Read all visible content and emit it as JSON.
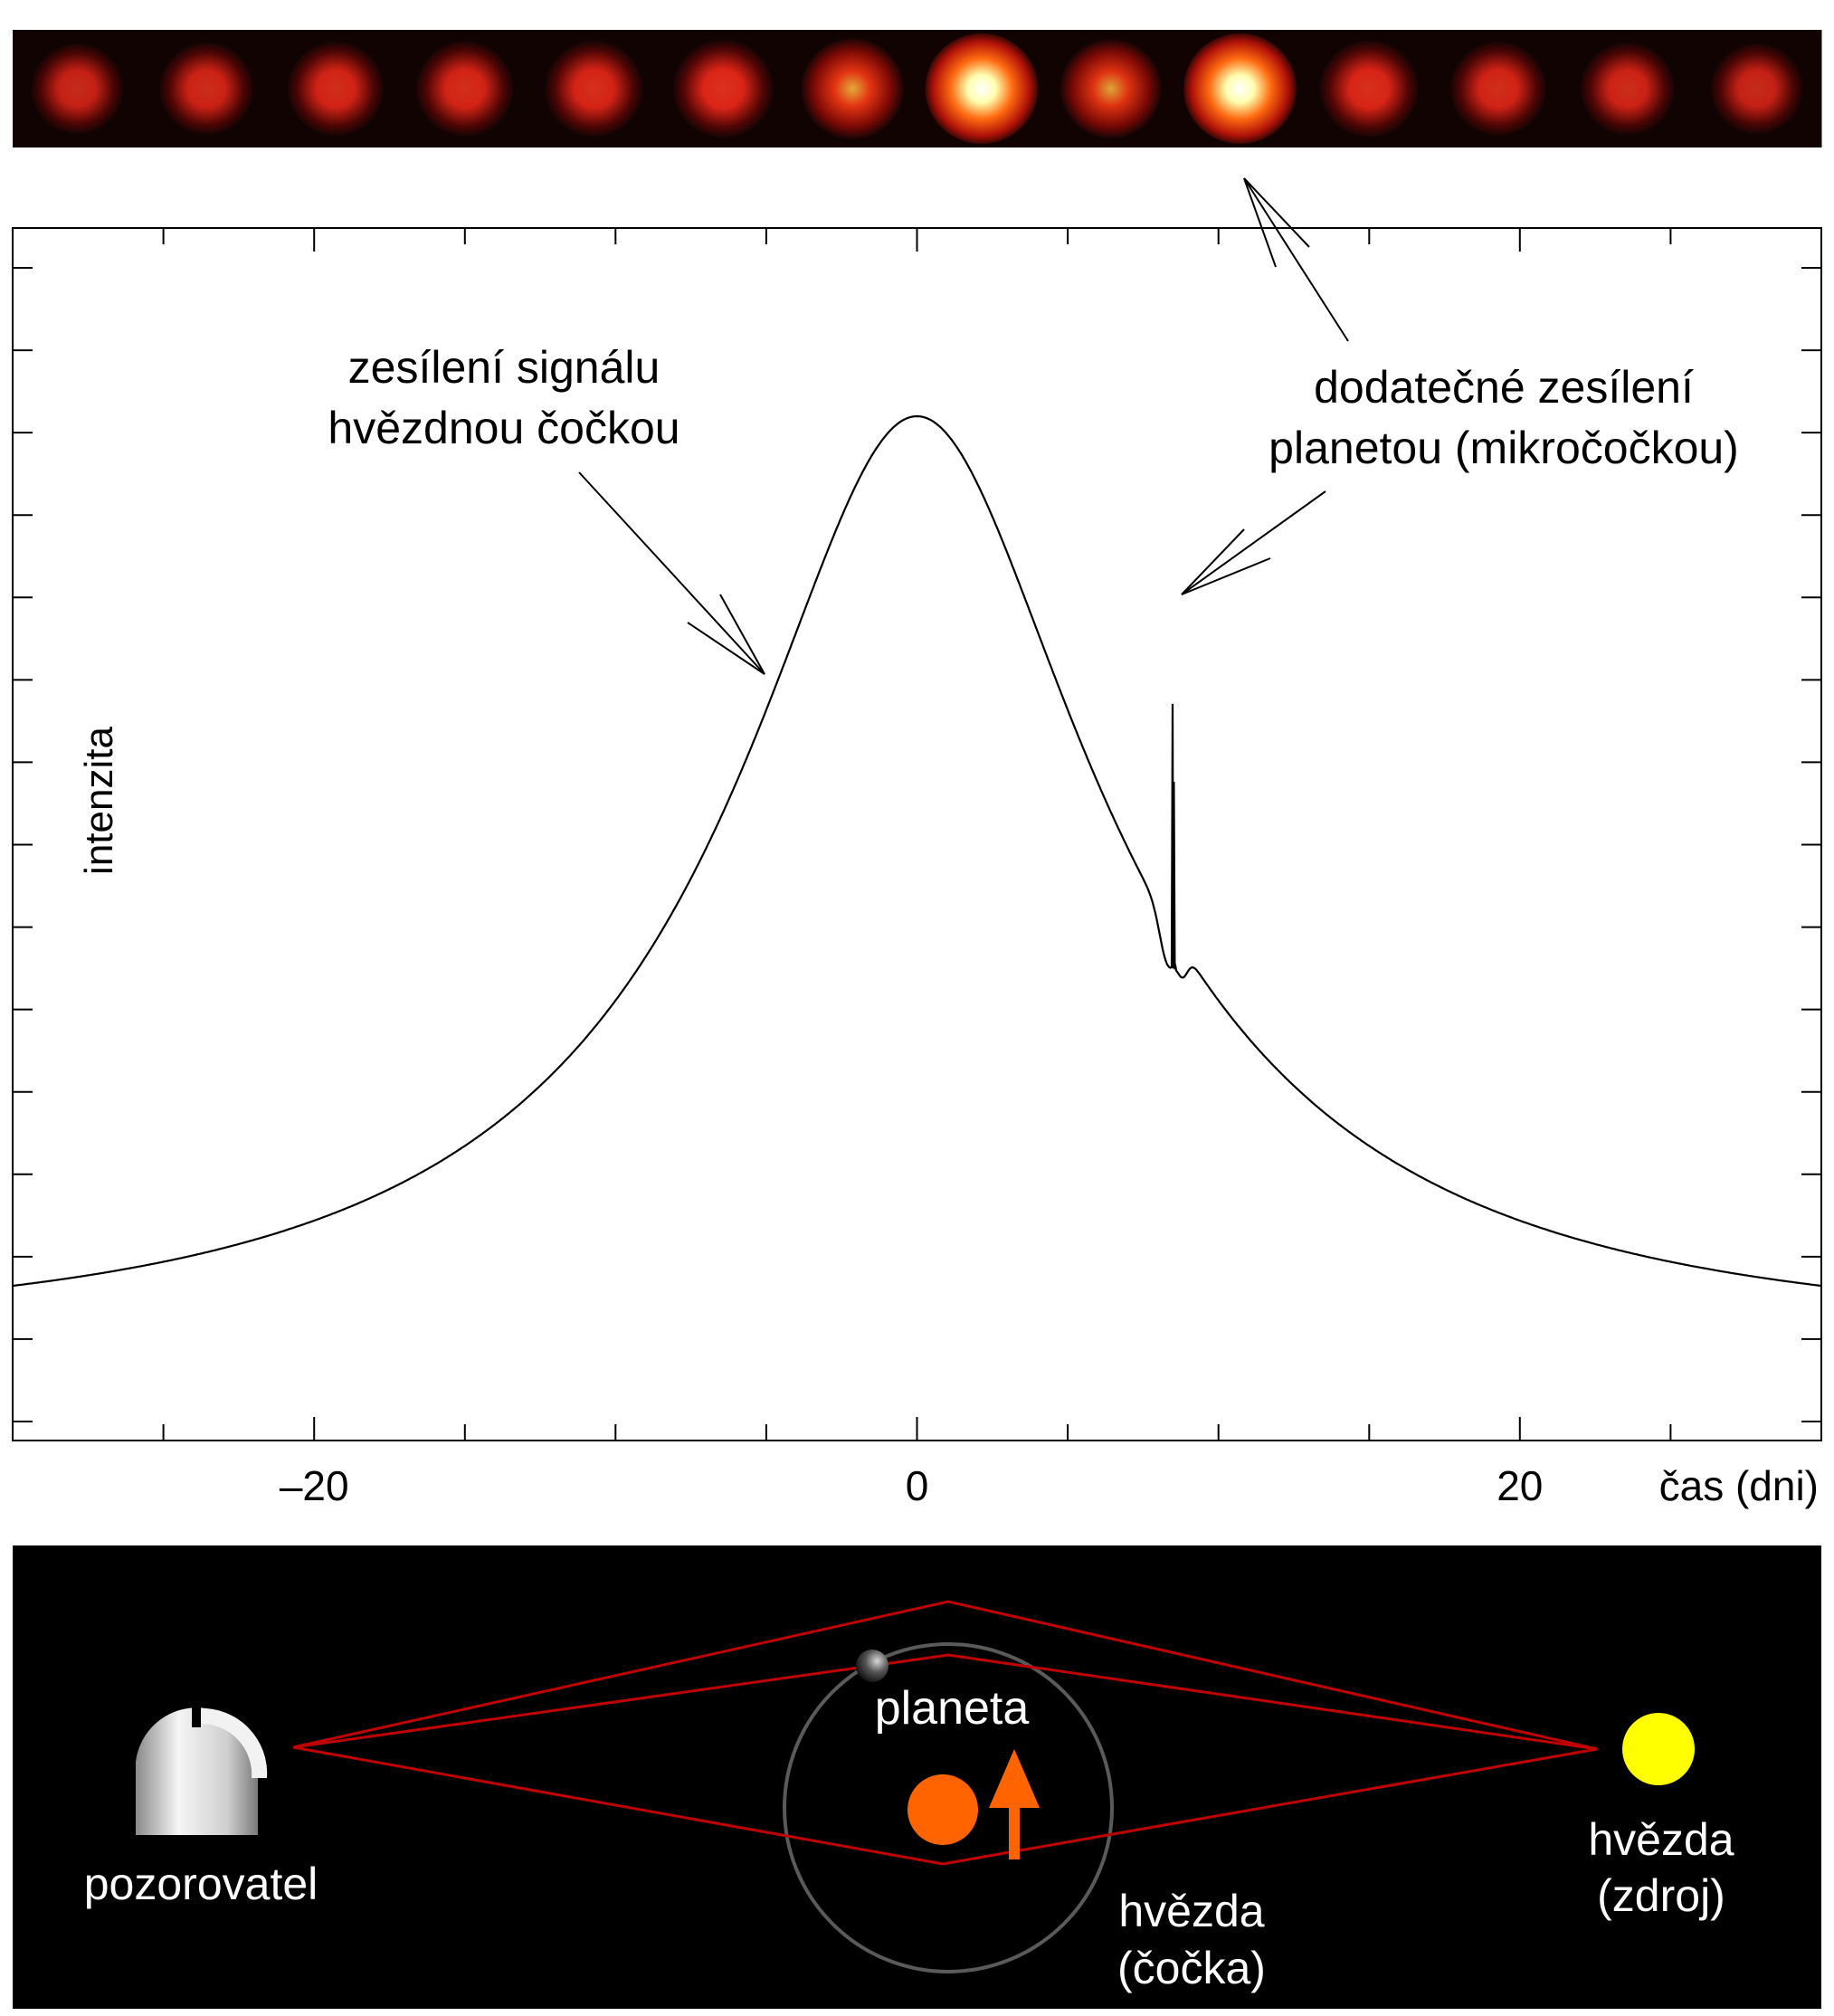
{
  "strip": {
    "frame_count": 14,
    "brightness": [
      0.45,
      0.5,
      0.55,
      0.58,
      0.6,
      0.66,
      0.74,
      1.0,
      0.7,
      1.0,
      0.62,
      0.55,
      0.5,
      0.45
    ],
    "colors": {
      "core": "#ffffb0",
      "mid": "#ff2a1a",
      "edge": "#1a0505"
    }
  },
  "annotations": {
    "stellar_line1": "zesílení signálu",
    "stellar_line2": "hvězdnou čočkou",
    "planet_line1": "dodatečné zesílení",
    "planet_line2": "planetou (mikročočkou)"
  },
  "chart_data": {
    "type": "line",
    "xlabel": "čas (dni)",
    "ylabel": "intenzita",
    "xlim": [
      -30,
      30
    ],
    "x_tick_labels": [
      {
        "value": -20,
        "label": "–20"
      },
      {
        "value": 0,
        "label": "0"
      },
      {
        "value": 20,
        "label": "20"
      }
    ],
    "x_minor_step": 5,
    "y_tick_count": 15,
    "series": [
      {
        "model": "point-lens",
        "t0": 0,
        "tE": 20,
        "u0": 0.284,
        "planetary_anomaly": {
          "t_center": 8.5,
          "peak_intensity": 2.8,
          "dip_before": 8.3,
          "dip_after": 8.8
        }
      }
    ]
  },
  "diagram": {
    "labels": {
      "observer": "pozorovatel",
      "planet": "planeta",
      "lens_line1": "hvězda",
      "lens_line2": "(čočka)",
      "source_line1": "hvězda",
      "source_line2": "(zdroj)"
    },
    "colors": {
      "background": "#000000",
      "rays": "#c00000",
      "orbit": "#5a5a5a",
      "lens_star": "#ff6400",
      "source_star": "#ffff00",
      "arrow": "#ff6400",
      "text": "#ffffff"
    }
  }
}
